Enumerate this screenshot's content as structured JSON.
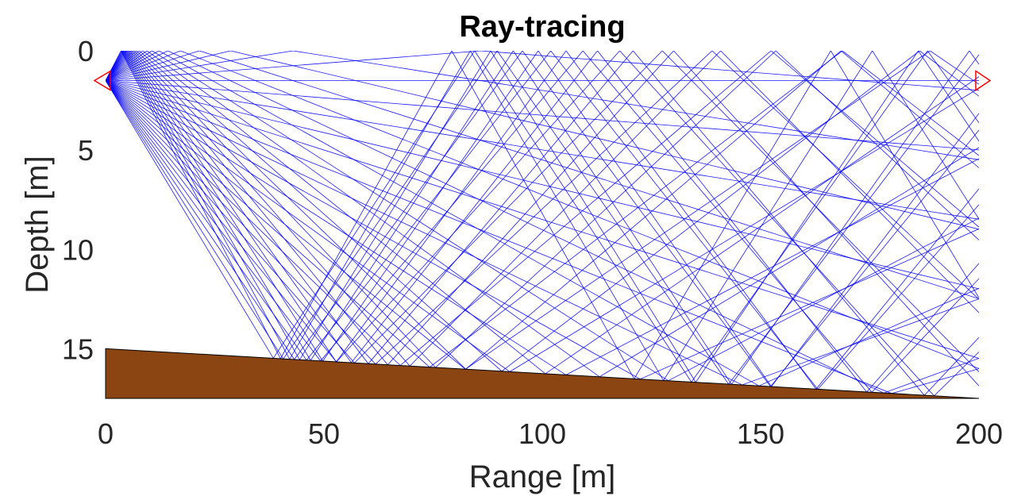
{
  "chart_data": {
    "type": "line",
    "title": "Ray-tracing",
    "xlabel": "Range [m]",
    "ylabel": "Depth [m]",
    "xlim": [
      0,
      200
    ],
    "ylim": [
      0,
      17.5
    ],
    "y_reversed": true,
    "x_ticks": [
      "0",
      "50",
      "100",
      "150",
      "200"
    ],
    "y_ticks": [
      "0",
      "5",
      "10",
      "15"
    ],
    "grid": false,
    "source": {
      "range": 0,
      "depth": 1.5
    },
    "receiver": {
      "range": 200,
      "depth": 1.5
    },
    "bottom": {
      "range": [
        0,
        200
      ],
      "depth": [
        15,
        17.5
      ]
    },
    "ray_launch_angles_deg": [
      -23,
      -22,
      -21,
      -20,
      -19,
      -18,
      -17,
      -16,
      -15,
      -14,
      -13,
      -12,
      -11,
      -10,
      -9,
      -8,
      -7,
      -6,
      -5,
      -4,
      -3,
      -2,
      -1,
      0,
      1,
      2,
      3,
      4,
      5,
      6,
      7,
      8,
      9,
      10,
      11,
      12,
      13,
      14,
      15,
      16,
      17,
      18,
      19,
      20
    ],
    "colors": {
      "rays": "#0000ff",
      "seabed": "#8b4513",
      "source_marker": "#ff0000",
      "receiver_marker": "#ff0000"
    }
  }
}
